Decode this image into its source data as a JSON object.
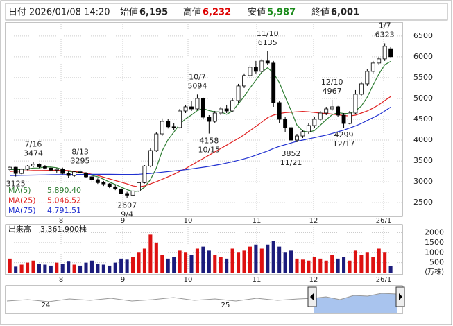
{
  "header": {
    "date_label": "日付",
    "datetime": "2026/01/08 14:20",
    "open_label": "始値",
    "open": "6,195",
    "high_label": "高値",
    "high": "6,232",
    "low_label": "安値",
    "low": "5,987",
    "close_label": "終値",
    "close": "6,001"
  },
  "chart_data": {
    "type": "candlestick",
    "open": [
      3300,
      3350,
      3200,
      3300,
      3380,
      3420,
      3360,
      3330,
      3280,
      3300,
      3200,
      3150,
      3240,
      3210,
      3120,
      3050,
      2980,
      2950,
      2880,
      2830,
      2720,
      2680,
      2780,
      2980,
      3380,
      3750,
      4150,
      4450,
      4320,
      4300,
      4700,
      4800,
      4750,
      5000,
      4550,
      4450,
      4650,
      4750,
      4700,
      4950,
      5300,
      5550,
      5750,
      5650,
      5900,
      5850,
      4900,
      4500,
      4300,
      4000,
      4100,
      4200,
      4350,
      4500,
      4650,
      4750,
      4800,
      4600,
      4400,
      4650,
      5100,
      5350,
      5650,
      5850,
      5950,
      6195
    ],
    "high": [
      3380,
      3360,
      3320,
      3400,
      3474,
      3440,
      3400,
      3360,
      3330,
      3340,
      3250,
      3260,
      3295,
      3230,
      3150,
      3080,
      3020,
      2970,
      2920,
      2860,
      2760,
      2800,
      3000,
      3400,
      3800,
      4200,
      4520,
      4500,
      4400,
      4750,
      4850,
      4950,
      5094,
      5020,
      4600,
      4700,
      4800,
      4850,
      5000,
      5350,
      5600,
      5800,
      5900,
      5950,
      6135,
      5900,
      4950,
      4550,
      4350,
      4150,
      4250,
      4400,
      4550,
      4700,
      4800,
      4967,
      4820,
      4650,
      4700,
      5200,
      5400,
      5700,
      5900,
      6000,
      6323,
      6232
    ],
    "low": [
      3250,
      3125,
      3180,
      3280,
      3350,
      3330,
      3300,
      3250,
      3220,
      3180,
      3100,
      3120,
      3180,
      3100,
      3020,
      2950,
      2900,
      2850,
      2800,
      2700,
      2607,
      2660,
      2760,
      2960,
      3350,
      3720,
      4100,
      4280,
      4250,
      4280,
      4650,
      4700,
      4720,
      4500,
      4158,
      4400,
      4600,
      4650,
      4680,
      4900,
      5250,
      5500,
      5600,
      5600,
      5800,
      4800,
      4400,
      4200,
      3852,
      3950,
      4050,
      4150,
      4300,
      4450,
      4600,
      4700,
      4550,
      4299,
      4380,
      4620,
      5050,
      5300,
      5600,
      5800,
      5900,
      5987
    ],
    "close": [
      3350,
      3200,
      3300,
      3380,
      3420,
      3360,
      3330,
      3280,
      3300,
      3200,
      3150,
      3240,
      3210,
      3120,
      3050,
      2980,
      2950,
      2880,
      2830,
      2720,
      2680,
      2780,
      2980,
      3380,
      3750,
      4150,
      4450,
      4320,
      4300,
      4700,
      4800,
      4750,
      5000,
      4550,
      4450,
      4650,
      4750,
      4700,
      4950,
      5300,
      5550,
      5750,
      5650,
      5900,
      5850,
      4900,
      4500,
      4300,
      4000,
      4100,
      4200,
      4350,
      4500,
      4650,
      4750,
      4800,
      4600,
      4400,
      4650,
      5100,
      5350,
      5650,
      5850,
      5950,
      6250,
      6001
    ],
    "up_color": "#ffffff",
    "down_color": "#000000",
    "xlim": [
      -0.5,
      67
    ],
    "xticks": [
      {
        "value": 8.74,
        "label": "8"
      },
      {
        "value": 19.28,
        "label": "9"
      },
      {
        "value": 30.41,
        "label": "10"
      },
      {
        "value": 42.13,
        "label": "11"
      },
      {
        "value": 51.84,
        "label": "12"
      },
      {
        "value": 63.8,
        "label": "26/1"
      }
    ],
    "ylim": [
      2170,
      6830
    ],
    "yticks": [
      2500,
      3000,
      3500,
      4000,
      4500,
      5000,
      5500,
      6000,
      6500
    ],
    "grid": true,
    "annotations": [
      {
        "label": "7/16",
        "value": 3474
      },
      {
        "value": 3125
      },
      {
        "label": "8/13",
        "value": 3295
      },
      {
        "label": "9/4",
        "value": 2607
      },
      {
        "label": "10/7",
        "value": 5094
      },
      {
        "label": "10/15",
        "value": 4158
      },
      {
        "label": "11/10",
        "value": 6135
      },
      {
        "label": "11/21",
        "value": 3852
      },
      {
        "label": "12/10",
        "value": 4967
      },
      {
        "label": "12/17",
        "value": 4299
      },
      {
        "label": "1/7",
        "value": 6323
      }
    ],
    "moving_averages": [
      {
        "name": "MA(5)",
        "color": "#2e7d32",
        "last_label": "5,890.40",
        "values": [
          3300,
          3290,
          3300,
          3310,
          3330,
          3332,
          3358,
          3354,
          3338,
          3294,
          3252,
          3234,
          3220,
          3194,
          3154,
          3120,
          3062,
          2996,
          2938,
          2872,
          2812,
          2768,
          2778,
          2870,
          3054,
          3328,
          3742,
          4010,
          4194,
          4384,
          4514,
          4604,
          4710,
          4760,
          4710,
          4680,
          4680,
          4620,
          4700,
          4870,
          5050,
          5250,
          5440,
          5630,
          5740,
          5610,
          5380,
          5040,
          4710,
          4360,
          4220,
          4190,
          4230,
          4360,
          4490,
          4610,
          4660,
          4640,
          4640,
          4700,
          4820,
          5030,
          5320,
          5590,
          5810,
          5890.4
        ]
      },
      {
        "name": "MA(25)",
        "color": "#e02020",
        "last_label": "5,046.52",
        "values": [
          3250,
          3255,
          3260,
          3265,
          3270,
          3272,
          3274,
          3275,
          3276,
          3274,
          3270,
          3250,
          3230,
          3210,
          3180,
          3150,
          3110,
          3070,
          3030,
          2990,
          2950,
          2900,
          2880,
          2900,
          2950,
          3000,
          3060,
          3120,
          3180,
          3250,
          3320,
          3400,
          3480,
          3560,
          3640,
          3720,
          3800,
          3880,
          3960,
          4040,
          4130,
          4230,
          4330,
          4430,
          4540,
          4600,
          4640,
          4660,
          4670,
          4680,
          4690,
          4680,
          4665,
          4650,
          4640,
          4625,
          4610,
          4590,
          4580,
          4600,
          4650,
          4700,
          4770,
          4850,
          4950,
          5046.52
        ]
      },
      {
        "name": "MA(75)",
        "color": "#2030d0",
        "last_label": "4,791.51",
        "values": [
          3150,
          3152,
          3155,
          3158,
          3160,
          3162,
          3165,
          3168,
          3170,
          3172,
          3174,
          3175,
          3176,
          3177,
          3178,
          3178,
          3178,
          3178,
          3177,
          3176,
          3175,
          3175,
          3180,
          3190,
          3200,
          3215,
          3230,
          3245,
          3260,
          3275,
          3290,
          3310,
          3330,
          3350,
          3370,
          3395,
          3420,
          3450,
          3480,
          3515,
          3550,
          3590,
          3640,
          3690,
          3740,
          3800,
          3850,
          3890,
          3930,
          3970,
          4000,
          4030,
          4060,
          4090,
          4120,
          4160,
          4200,
          4240,
          4290,
          4340,
          4400,
          4470,
          4540,
          4610,
          4700,
          4791.51
        ]
      }
    ],
    "volume": {
      "title": "出来高",
      "last_label": "3,361,900株",
      "unit": "(万株)",
      "up_color": "#dd1111",
      "down_color": "#1c1c7c",
      "ylim": [
        0,
        2400
      ],
      "yticks": [
        500,
        1000,
        1500,
        2000
      ],
      "values": [
        700,
        300,
        400,
        500,
        600,
        450,
        400,
        350,
        500,
        450,
        550,
        400,
        350,
        500,
        600,
        450,
        400,
        350,
        500,
        700,
        650,
        800,
        1000,
        1200,
        1900,
        1500,
        900,
        700,
        800,
        1100,
        1000,
        900,
        1200,
        1300,
        1100,
        900,
        800,
        700,
        1200,
        1000,
        1100,
        1300,
        1400,
        1200,
        1400,
        1600,
        1300,
        1000,
        1100,
        700,
        650,
        600,
        800,
        700,
        600,
        900,
        700,
        800,
        600,
        1100,
        900,
        1000,
        800,
        1200,
        1000,
        336.19
      ]
    }
  },
  "navigator": {
    "labels": [
      "24",
      "25"
    ]
  }
}
